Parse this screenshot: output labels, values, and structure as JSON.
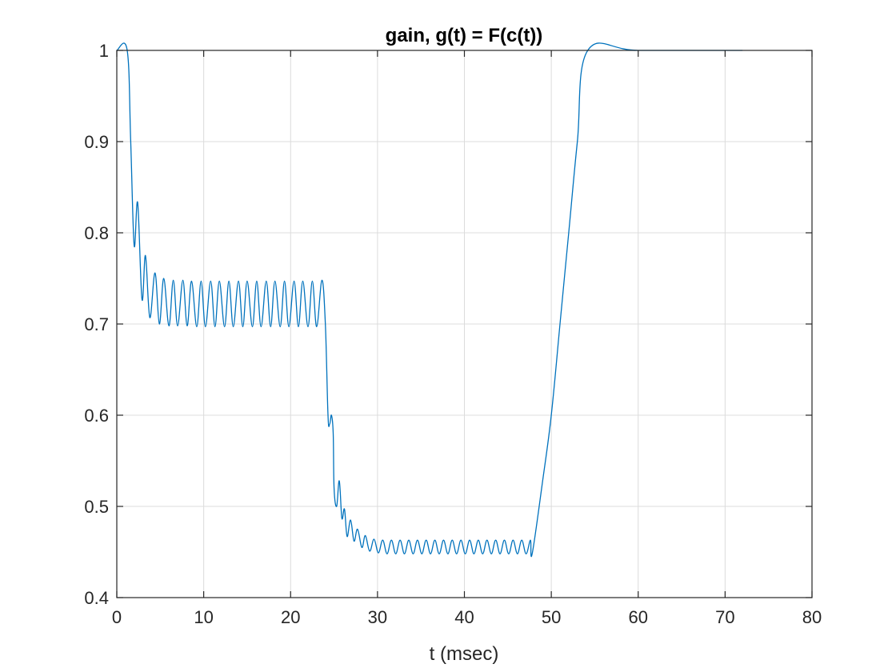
{
  "chart_data": {
    "type": "line",
    "title": "gain, g(t) = F(c(t))",
    "xlabel": "t (msec)",
    "ylabel": "",
    "xlim": [
      0,
      80
    ],
    "ylim": [
      0.4,
      1
    ],
    "xticks": [
      0,
      10,
      20,
      30,
      40,
      50,
      60,
      70,
      80
    ],
    "xtick_labels": [
      "0",
      "10",
      "20",
      "30",
      "40",
      "50",
      "60",
      "70",
      "80"
    ],
    "yticks": [
      0.4,
      0.5,
      0.6,
      0.7,
      0.8,
      0.9,
      1.0
    ],
    "ytick_labels": [
      "0.4",
      "0.5",
      "0.6",
      "0.7",
      "0.8",
      "0.9",
      "1"
    ],
    "grid": true,
    "line_color": "#0072BD",
    "series": [
      {
        "x": [
          0,
          1.2,
          1.6,
          2.0,
          2.4,
          2.9,
          3.3,
          3.8,
          4.4,
          4.9,
          5.4,
          6.0,
          6.5,
          7.0,
          7.6,
          8.1,
          8.6,
          9.2,
          9.7,
          10.2,
          10.8,
          11.3,
          11.8,
          12.4,
          12.9,
          13.4,
          14.0,
          14.5,
          15.0,
          15.6,
          16.1,
          16.6,
          17.2,
          17.7,
          18.2,
          18.8,
          19.3,
          19.8,
          20.4,
          20.9,
          21.4,
          22.0,
          22.5,
          23.0,
          23.6,
          24.0,
          24.3,
          24.5,
          24.7,
          24.9,
          25.0,
          25.3,
          25.6,
          25.9,
          26.2,
          26.5,
          26.9,
          27.3,
          27.7,
          28.2,
          28.6,
          29.1,
          29.6,
          30.1,
          30.6,
          31.1,
          31.6,
          32.1,
          32.6,
          33.1,
          33.6,
          34.1,
          34.6,
          35.1,
          35.6,
          36.1,
          36.6,
          37.1,
          37.6,
          38.1,
          38.6,
          39.1,
          39.6,
          40.1,
          40.6,
          41.1,
          41.6,
          42.1,
          42.6,
          43.1,
          43.6,
          44.1,
          44.6,
          45.1,
          45.6,
          46.1,
          46.6,
          47.1,
          47.6,
          47.8,
          49.0,
          50.0,
          51.0,
          52.0,
          53.0,
          54.2,
          60.0,
          72.0
        ],
        "y": [
          1.0,
          1.0,
          0.9,
          0.786,
          0.833,
          0.727,
          0.775,
          0.707,
          0.756,
          0.7,
          0.75,
          0.698,
          0.748,
          0.698,
          0.748,
          0.698,
          0.747,
          0.697,
          0.747,
          0.697,
          0.747,
          0.697,
          0.747,
          0.697,
          0.747,
          0.697,
          0.747,
          0.697,
          0.747,
          0.697,
          0.747,
          0.697,
          0.747,
          0.697,
          0.747,
          0.697,
          0.747,
          0.697,
          0.747,
          0.697,
          0.747,
          0.697,
          0.747,
          0.697,
          0.748,
          0.7,
          0.6,
          0.59,
          0.6,
          0.58,
          0.52,
          0.5,
          0.528,
          0.487,
          0.497,
          0.467,
          0.485,
          0.462,
          0.475,
          0.455,
          0.468,
          0.451,
          0.464,
          0.449,
          0.463,
          0.448,
          0.463,
          0.448,
          0.463,
          0.448,
          0.463,
          0.448,
          0.463,
          0.448,
          0.463,
          0.448,
          0.463,
          0.448,
          0.463,
          0.448,
          0.463,
          0.448,
          0.463,
          0.448,
          0.463,
          0.448,
          0.463,
          0.448,
          0.463,
          0.448,
          0.463,
          0.448,
          0.463,
          0.448,
          0.463,
          0.448,
          0.463,
          0.448,
          0.463,
          0.448,
          0.528,
          0.6,
          0.7,
          0.8,
          0.9,
          1.0,
          1.0,
          1.0
        ]
      }
    ]
  }
}
